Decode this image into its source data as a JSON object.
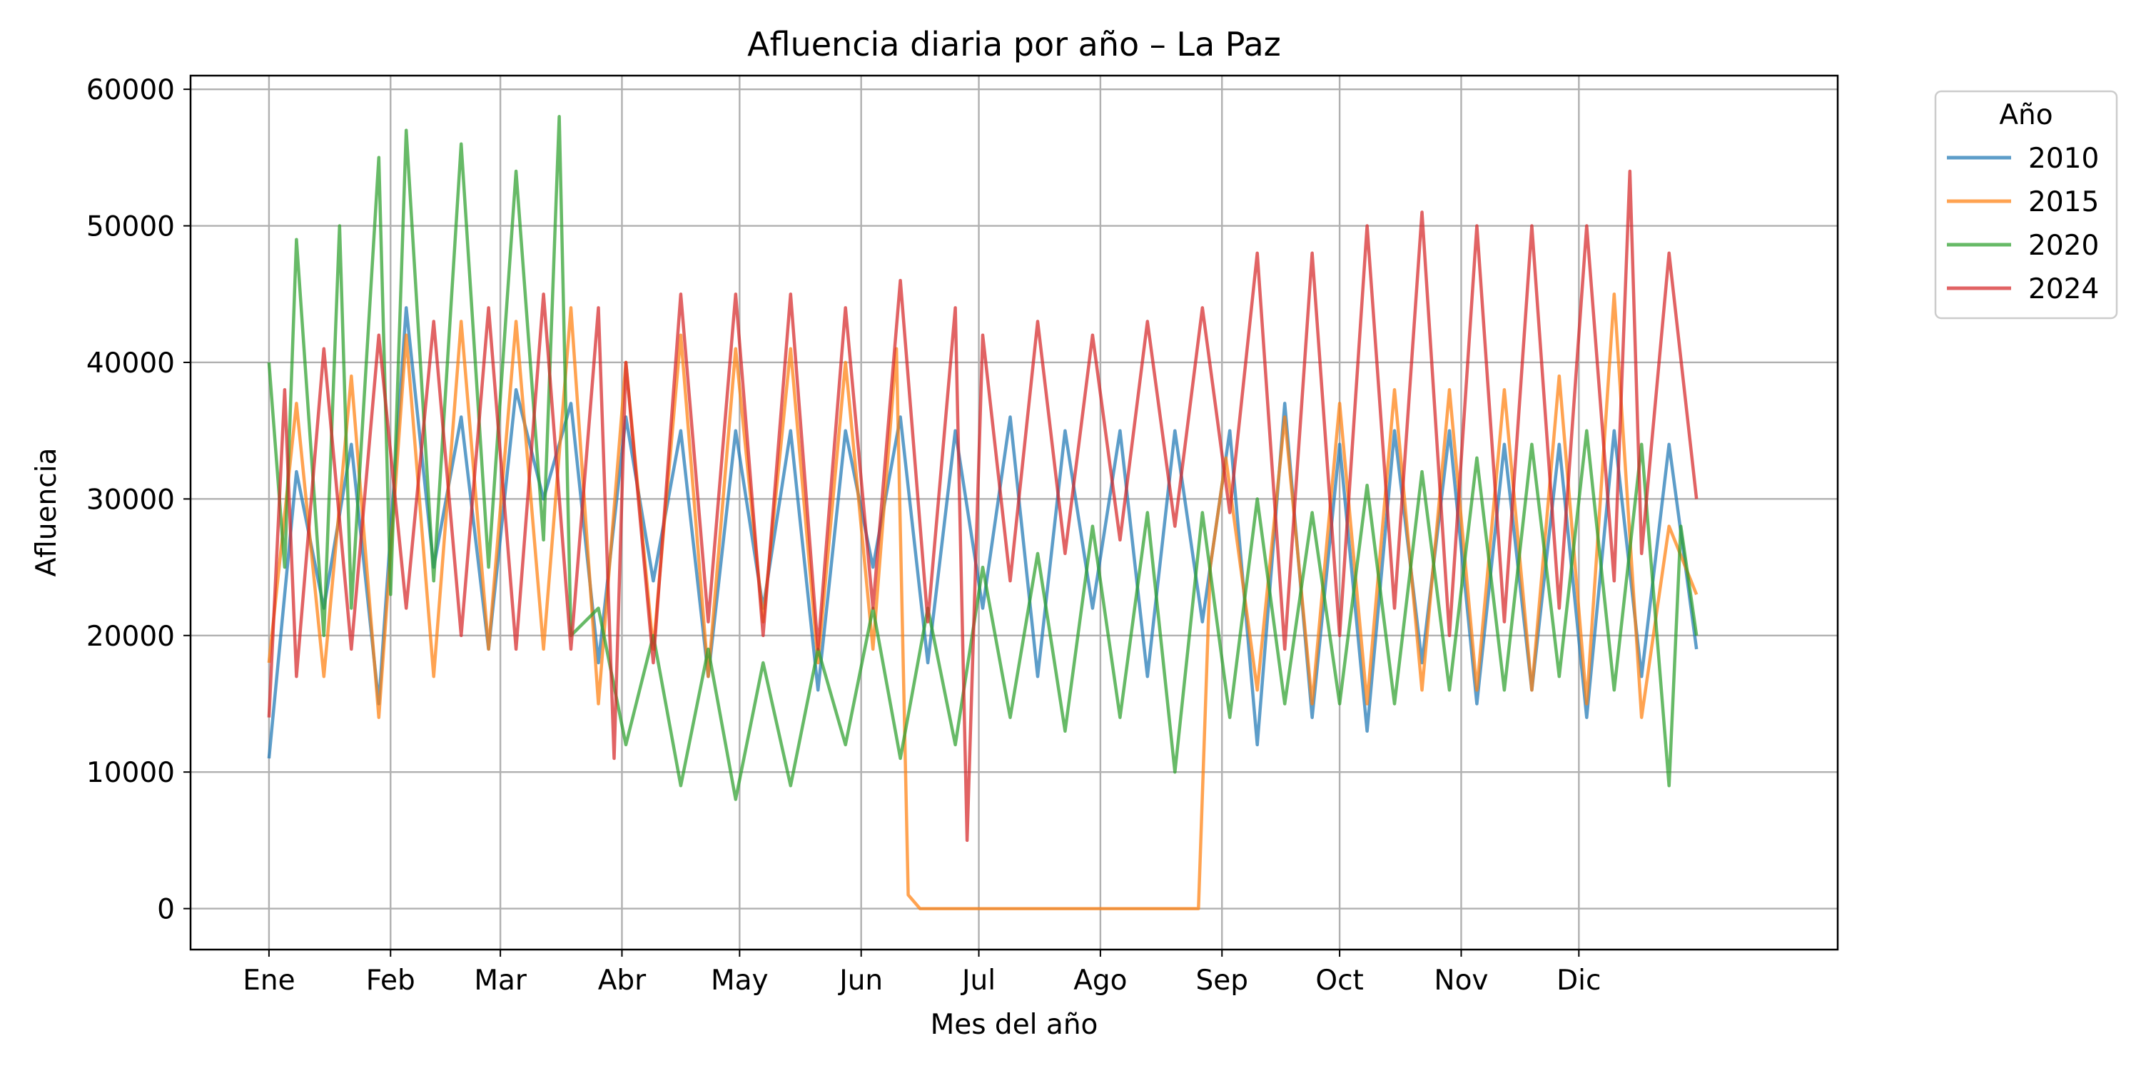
{
  "chart_data": {
    "type": "line",
    "title": "Afluencia diaria por año – La Paz",
    "xlabel": "Mes del año",
    "ylabel": "Afluencia",
    "xlim": [
      -20,
      400
    ],
    "ylim": [
      -3000,
      61000
    ],
    "x_ticks": [
      {
        "day": 0,
        "label": "Ene"
      },
      {
        "day": 31,
        "label": "Feb"
      },
      {
        "day": 59,
        "label": "Mar"
      },
      {
        "day": 90,
        "label": "Abr"
      },
      {
        "day": 120,
        "label": "May"
      },
      {
        "day": 151,
        "label": "Jun"
      },
      {
        "day": 181,
        "label": "Jul"
      },
      {
        "day": 212,
        "label": "Ago"
      },
      {
        "day": 243,
        "label": "Sep"
      },
      {
        "day": 273,
        "label": "Oct"
      },
      {
        "day": 304,
        "label": "Nov"
      },
      {
        "day": 334,
        "label": "Dic"
      }
    ],
    "y_ticks": [
      0,
      10000,
      20000,
      30000,
      40000,
      50000,
      60000
    ],
    "y_tick_labels": [
      "0",
      "10000",
      "20000",
      "30000",
      "40000",
      "50000",
      "60000"
    ],
    "grid": true,
    "legend": {
      "title": "Año",
      "placement": "outside-top-right"
    },
    "series": [
      {
        "name": "2010",
        "color": "#1f77b4",
        "x": [
          0,
          7,
          14,
          21,
          28,
          35,
          42,
          49,
          56,
          63,
          70,
          77,
          84,
          91,
          98,
          105,
          112,
          119,
          126,
          133,
          140,
          147,
          154,
          161,
          168,
          175,
          182,
          189,
          196,
          203,
          210,
          217,
          224,
          231,
          238,
          245,
          252,
          259,
          266,
          273,
          280,
          287,
          294,
          301,
          308,
          315,
          322,
          329,
          336,
          343,
          350,
          357,
          364
        ],
        "values": [
          11000,
          32000,
          22000,
          34000,
          15000,
          44000,
          25000,
          36000,
          19000,
          38000,
          30000,
          37000,
          18000,
          36000,
          24000,
          35000,
          17000,
          35000,
          22000,
          35000,
          16000,
          35000,
          25000,
          36000,
          18000,
          35000,
          22000,
          36000,
          17000,
          35000,
          22000,
          35000,
          17000,
          35000,
          21000,
          35000,
          12000,
          37000,
          14000,
          34000,
          13000,
          35000,
          18000,
          35000,
          15000,
          34000,
          16000,
          34000,
          14000,
          35000,
          17000,
          34000,
          19000
        ]
      },
      {
        "name": "2015",
        "color": "#ff7f0e",
        "x": [
          0,
          7,
          14,
          21,
          28,
          35,
          42,
          49,
          56,
          63,
          70,
          77,
          84,
          91,
          98,
          105,
          112,
          119,
          126,
          133,
          140,
          147,
          154,
          160,
          163,
          166,
          175,
          185,
          195,
          205,
          215,
          225,
          235,
          237,
          240,
          244,
          252,
          259,
          266,
          273,
          280,
          287,
          294,
          301,
          308,
          315,
          322,
          329,
          336,
          343,
          350,
          357,
          364
        ],
        "values": [
          18000,
          37000,
          17000,
          39000,
          14000,
          42000,
          17000,
          43000,
          19000,
          43000,
          19000,
          44000,
          15000,
          40000,
          19000,
          42000,
          17000,
          41000,
          21000,
          41000,
          18000,
          40000,
          19000,
          41000,
          1000,
          0,
          0,
          0,
          0,
          0,
          0,
          0,
          0,
          0,
          25000,
          33000,
          16000,
          36000,
          15000,
          37000,
          15000,
          38000,
          16000,
          38000,
          16000,
          38000,
          16000,
          39000,
          15000,
          45000,
          14000,
          28000,
          23000
        ]
      },
      {
        "name": "2020",
        "color": "#2ca02c",
        "x": [
          0,
          4,
          7,
          14,
          18,
          21,
          28,
          31,
          35,
          42,
          49,
          56,
          63,
          70,
          74,
          77,
          84,
          91,
          98,
          105,
          112,
          119,
          126,
          133,
          140,
          147,
          154,
          161,
          168,
          175,
          182,
          189,
          196,
          203,
          210,
          217,
          224,
          231,
          238,
          245,
          252,
          259,
          266,
          273,
          280,
          287,
          294,
          301,
          308,
          315,
          322,
          329,
          336,
          343,
          350,
          357,
          360,
          364
        ],
        "values": [
          40000,
          25000,
          49000,
          20000,
          50000,
          22000,
          55000,
          23000,
          57000,
          24000,
          56000,
          25000,
          54000,
          27000,
          58000,
          20000,
          22000,
          12000,
          20000,
          9000,
          19000,
          8000,
          18000,
          9000,
          19000,
          12000,
          22000,
          11000,
          22000,
          12000,
          25000,
          14000,
          26000,
          13000,
          28000,
          14000,
          29000,
          10000,
          29000,
          14000,
          30000,
          15000,
          29000,
          15000,
          31000,
          15000,
          32000,
          16000,
          33000,
          16000,
          34000,
          17000,
          35000,
          16000,
          34000,
          9000,
          28000,
          20000
        ]
      },
      {
        "name": "2024",
        "color": "#d62728",
        "x": [
          0,
          4,
          7,
          14,
          21,
          28,
          35,
          42,
          49,
          56,
          63,
          70,
          77,
          84,
          88,
          91,
          98,
          105,
          112,
          119,
          126,
          133,
          140,
          147,
          154,
          161,
          168,
          175,
          178,
          182,
          189,
          196,
          203,
          210,
          217,
          224,
          231,
          238,
          245,
          252,
          259,
          266,
          273,
          280,
          287,
          294,
          301,
          308,
          315,
          322,
          329,
          336,
          343,
          347,
          350,
          357,
          364
        ],
        "values": [
          14000,
          38000,
          17000,
          41000,
          19000,
          42000,
          22000,
          43000,
          20000,
          44000,
          19000,
          45000,
          19000,
          44000,
          11000,
          40000,
          18000,
          45000,
          21000,
          45000,
          20000,
          45000,
          19000,
          44000,
          22000,
          46000,
          21000,
          44000,
          5000,
          42000,
          24000,
          43000,
          26000,
          42000,
          27000,
          43000,
          28000,
          44000,
          29000,
          48000,
          19000,
          48000,
          20000,
          50000,
          22000,
          51000,
          20000,
          50000,
          21000,
          50000,
          22000,
          50000,
          24000,
          54000,
          26000,
          48000,
          30000
        ]
      }
    ]
  }
}
